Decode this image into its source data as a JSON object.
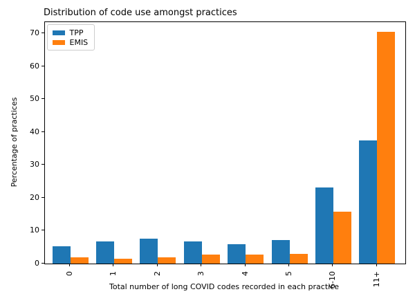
{
  "figure": {
    "background_color": "#ffffff",
    "frame_color": "#000000",
    "legend_border_color": "#cccccc"
  },
  "chart_data": {
    "type": "bar",
    "title": "Distribution of code use amongst practices",
    "xlabel": "Total number of long COVID codes recorded in each practice",
    "ylabel": "Percentage of practices",
    "categories": [
      "0",
      "1",
      "2",
      "3",
      "4",
      "5",
      "6-10",
      "11+"
    ],
    "series": [
      {
        "name": "TPP",
        "color": "#1f77b4",
        "values": [
          5.3,
          6.8,
          7.5,
          6.8,
          5.9,
          7.1,
          23.2,
          37.5
        ]
      },
      {
        "name": "EMIS",
        "color": "#ff7f0e",
        "values": [
          2.0,
          1.4,
          2.0,
          2.8,
          2.8,
          3.0,
          15.9,
          70.5
        ]
      }
    ],
    "yticks": [
      0,
      10,
      20,
      30,
      40,
      50,
      60,
      70
    ],
    "ylim": [
      0,
      73.5
    ],
    "grid": false,
    "legend_position": "upper left",
    "xtick_rotation": 90,
    "title_align": "left"
  }
}
